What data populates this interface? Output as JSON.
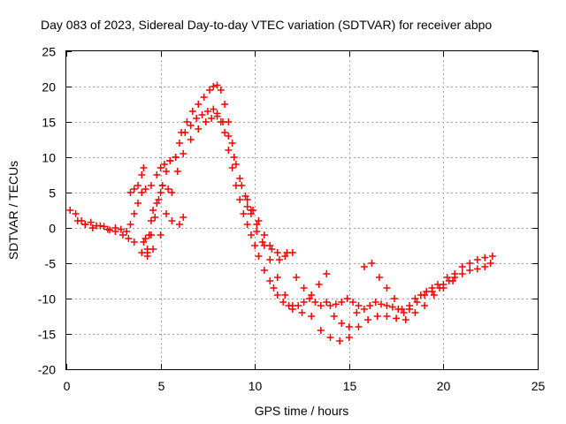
{
  "chart_data": {
    "type": "scatter",
    "title": "Day 083 of 2023, Sidereal Day-to-day VTEC variation (SDTVAR) for receiver abpo",
    "xlabel": "GPS time / hours",
    "ylabel": "SDTVAR / TECUs",
    "xlim": [
      0,
      25
    ],
    "ylim": [
      -20,
      25
    ],
    "xticks": [
      0,
      5,
      10,
      15,
      20,
      25
    ],
    "yticks": [
      -20,
      -15,
      -10,
      -5,
      0,
      5,
      10,
      15,
      20,
      25
    ],
    "xtick_labels": [
      "0",
      "5",
      "10",
      "15",
      "20",
      "25"
    ],
    "ytick_labels": [
      "-20",
      "-15",
      "-10",
      "-5",
      "0",
      "5",
      "10",
      "15",
      "20",
      "25"
    ],
    "grid": true,
    "marker": "+",
    "color": "#ff0000",
    "series": [
      {
        "name": "main-trace",
        "x": [
          0.2,
          0.5,
          0.8,
          1.0,
          1.3,
          1.6,
          2.0,
          2.3,
          2.6,
          2.9,
          3.2,
          3.4,
          3.6,
          3.8,
          4.0,
          4.2,
          4.5,
          4.8,
          5.0,
          5.2,
          5.5,
          5.8,
          6.0,
          6.3,
          6.6,
          6.9,
          7.2,
          7.5,
          7.8,
          8.0,
          8.2,
          8.4,
          8.6,
          8.8,
          9.0,
          9.2,
          9.4,
          9.6,
          9.8,
          10.0,
          10.2,
          10.5,
          10.8,
          11.0,
          11.2,
          11.5,
          11.8,
          12.0,
          12.3,
          12.6,
          12.9,
          13.2,
          13.5,
          13.8,
          14.0,
          14.3,
          14.6,
          14.9,
          15.2,
          15.5,
          15.8,
          16.1,
          16.4,
          16.7,
          17.0,
          17.3,
          17.6,
          17.9,
          18.2,
          18.5,
          18.8,
          19.1,
          19.4,
          19.7,
          20.0,
          20.3,
          20.6,
          21.0,
          21.4,
          21.8,
          22.2,
          22.5
        ],
        "y": [
          2.5,
          2.0,
          1.0,
          0.5,
          0.8,
          0.3,
          0.2,
          -0.3,
          0.0,
          -0.2,
          -0.5,
          0.5,
          2.0,
          3.5,
          5.0,
          5.5,
          6.0,
          7.5,
          8.5,
          9.0,
          9.5,
          10.0,
          12.0,
          13.5,
          14.5,
          15.5,
          16.0,
          16.5,
          16.8,
          16.2,
          15.0,
          13.5,
          11.0,
          8.5,
          6.0,
          4.0,
          2.0,
          0.5,
          -1.0,
          -2.5,
          -4.0,
          -6.0,
          -7.5,
          -8.5,
          -9.5,
          -10.5,
          -11.0,
          -11.5,
          -11.0,
          -10.5,
          -10.0,
          -10.5,
          -11.0,
          -10.5,
          -11.0,
          -10.8,
          -10.5,
          -10.0,
          -10.5,
          -11.0,
          -11.5,
          -11.0,
          -10.5,
          -10.8,
          -11.0,
          -11.2,
          -11.5,
          -12.0,
          -11.0,
          -10.0,
          -9.5,
          -9.0,
          -8.5,
          -8.0,
          -8.0,
          -7.5,
          -7.0,
          -6.5,
          -6.0,
          -5.8,
          -5.5,
          -5.0
        ]
      },
      {
        "name": "upper-band",
        "x": [
          3.4,
          3.6,
          3.8,
          4.0,
          4.1,
          4.3,
          4.5,
          4.7,
          4.9,
          5.1,
          5.3,
          5.5,
          5.8,
          6.1,
          6.4,
          6.7,
          7.0,
          7.3,
          7.6,
          7.8,
          8.0,
          8.2,
          8.4,
          8.6,
          8.8,
          9.0,
          9.3,
          9.6,
          9.9,
          10.2,
          10.5,
          10.8,
          11.2,
          11.6,
          12.0
        ],
        "y": [
          5.0,
          5.5,
          6.0,
          7.5,
          8.5,
          -3.0,
          -1.0,
          1.5,
          4.0,
          6.0,
          8.0,
          9.5,
          10.0,
          13.5,
          15.0,
          16.5,
          17.5,
          18.5,
          19.5,
          20.0,
          20.2,
          19.5,
          17.5,
          15.0,
          12.0,
          9.0,
          6.0,
          4.0,
          2.5,
          1.0,
          -1.0,
          -2.5,
          -3.5,
          -4.0,
          -3.5
        ]
      },
      {
        "name": "lower-band",
        "x": [
          0.6,
          1.0,
          1.4,
          1.8,
          2.2,
          2.6,
          3.0,
          3.3,
          3.6,
          4.0,
          4.3,
          4.6,
          5.0,
          5.3,
          5.6,
          5.9,
          6.2,
          6.6,
          7.0,
          7.4,
          7.7,
          8.0,
          8.3,
          8.6,
          8.9,
          9.2,
          9.5,
          9.8,
          10.1,
          10.4,
          10.8,
          11.2,
          11.6,
          12.0,
          12.5,
          13.0,
          13.5,
          14.0,
          14.5,
          15.0,
          15.5,
          16.0,
          16.5,
          17.0,
          17.5,
          18.0,
          18.5,
          19.0,
          19.5,
          20.0,
          20.5
        ],
        "y": [
          1.0,
          0.5,
          0.0,
          0.3,
          -0.2,
          -0.5,
          -1.0,
          -1.5,
          -2.0,
          -3.5,
          -4.0,
          -3.0,
          -1.0,
          2.0,
          5.0,
          8.0,
          10.5,
          12.5,
          14.0,
          15.0,
          15.5,
          15.8,
          15.0,
          13.0,
          10.0,
          7.0,
          4.5,
          2.5,
          0.5,
          -2.0,
          -4.5,
          -7.0,
          -9.5,
          -11.0,
          -12.0,
          -12.5,
          -14.5,
          -15.5,
          -16.0,
          -15.5,
          -14.0,
          -13.0,
          -12.5,
          -12.5,
          -12.8,
          -13.0,
          -12.0,
          -11.0,
          -9.5,
          -8.5,
          -7.5
        ]
      },
      {
        "name": "scatter-segments",
        "x": [
          4.1,
          4.2,
          4.3,
          4.4,
          4.5,
          4.6,
          4.8,
          5.0,
          5.1,
          5.4,
          5.6,
          6.0,
          6.2,
          9.6,
          9.8,
          10.1,
          10.5,
          10.9,
          11.3,
          11.7,
          12.2,
          12.6,
          13.0,
          13.4,
          13.8,
          14.2,
          14.6,
          15.0,
          15.4,
          15.8,
          16.2,
          16.6,
          17.0,
          17.4,
          17.8,
          18.2,
          18.6,
          19.0,
          19.4,
          19.8,
          20.2,
          20.6,
          21.0,
          21.4,
          21.8,
          22.2,
          22.6
        ],
        "y": [
          -2.0,
          -1.5,
          -3.5,
          -1.0,
          1.0,
          2.5,
          3.5,
          5.0,
          6.0,
          5.5,
          1.0,
          0.5,
          1.5,
          3.0,
          2.0,
          -0.5,
          -2.5,
          -3.0,
          -4.5,
          -3.5,
          -7.0,
          -8.5,
          -9.5,
          -8.0,
          -6.5,
          -12.5,
          -13.5,
          -14.0,
          -12.0,
          -5.5,
          -5.0,
          -7.0,
          -8.5,
          -10.0,
          -11.5,
          -11.5,
          -10.5,
          -9.5,
          -9.0,
          -8.5,
          -7.0,
          -6.5,
          -5.5,
          -5.0,
          -4.5,
          -4.2,
          -4.0
        ]
      }
    ]
  }
}
